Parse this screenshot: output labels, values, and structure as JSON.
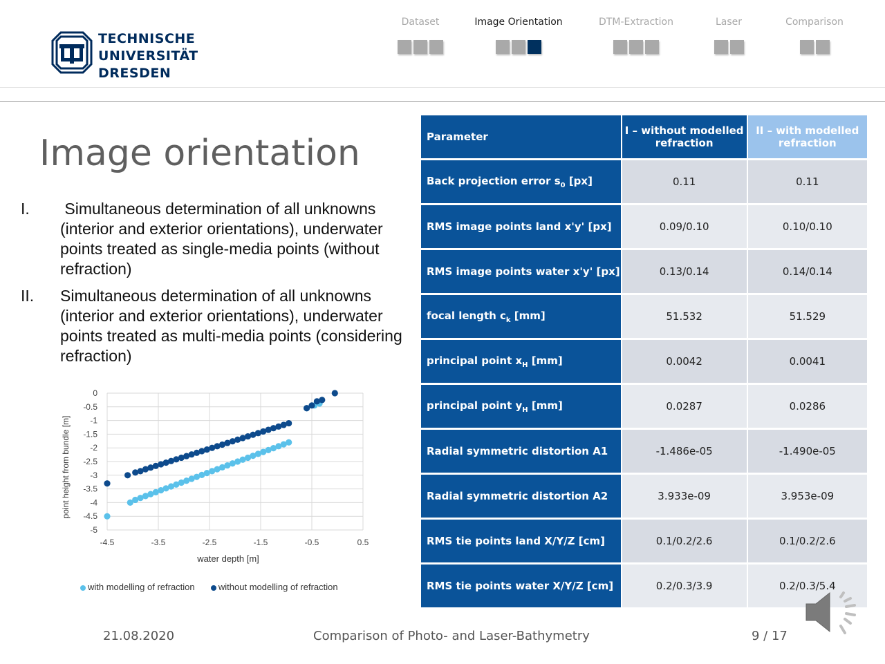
{
  "brand": {
    "line1": "TECHNISCHE",
    "line2": "UNIVERSITÄT",
    "line3": "DRESDEN",
    "color": "#002b5c"
  },
  "nav": [
    {
      "label": "Dataset",
      "boxes": 3,
      "current": -1,
      "active": false
    },
    {
      "label": "Image Orientation",
      "boxes": 3,
      "current": 2,
      "active": true
    },
    {
      "label": "DTM-Extraction",
      "boxes": 3,
      "current": -1,
      "active": false
    },
    {
      "label": "Laser",
      "boxes": 2,
      "current": -1,
      "active": false
    },
    {
      "label": "Comparison",
      "boxes": 2,
      "current": -1,
      "active": false
    }
  ],
  "slide": {
    "title": "Image orientation",
    "items": [
      {
        "num": "I.",
        "text": " Simultaneous determination of all unknowns (interior and exterior orientations), underwater points treated as single-media points (without refraction)"
      },
      {
        "num": "II.",
        "text": "Simultaneous determination of all unknowns (interior and exterior orientations), underwater points treated as multi-media points (considering refraction)"
      }
    ]
  },
  "chart_data": {
    "type": "scatter",
    "xlabel": "water depth [m]",
    "ylabel": "point height from bundle [m]",
    "xlim": [
      -4.5,
      0.5
    ],
    "ylim": [
      -5,
      0
    ],
    "xticks": [
      "-4.5",
      "-3.5",
      "-2.5",
      "-1.5",
      "-0.5",
      "0.5"
    ],
    "yticks": [
      "0",
      "-0.5",
      "-1",
      "-1.5",
      "-2",
      "-2.5",
      "-3",
      "-3.5",
      "-4",
      "-4.5",
      "-5"
    ],
    "grid": true,
    "legend_position": "bottom",
    "series": [
      {
        "name": "with modelling of refraction",
        "color": "#5bc1ea",
        "x": [
          -4.5,
          -4.05,
          -3.95,
          -3.85,
          -3.75,
          -3.65,
          -3.55,
          -3.45,
          -3.35,
          -3.25,
          -3.15,
          -3.05,
          -2.95,
          -2.85,
          -2.75,
          -2.65,
          -2.55,
          -2.45,
          -2.35,
          -2.25,
          -2.15,
          -2.05,
          -1.95,
          -1.85,
          -1.75,
          -1.65,
          -1.55,
          -1.45,
          -1.35,
          -1.25,
          -1.15,
          -1.05,
          -0.95,
          -0.6,
          -0.45,
          -0.35
        ],
        "y": [
          -4.5,
          -4.0,
          -3.9,
          -3.83,
          -3.76,
          -3.69,
          -3.62,
          -3.55,
          -3.48,
          -3.41,
          -3.34,
          -3.27,
          -3.2,
          -3.13,
          -3.06,
          -2.99,
          -2.92,
          -2.85,
          -2.78,
          -2.71,
          -2.64,
          -2.57,
          -2.5,
          -2.43,
          -2.36,
          -2.29,
          -2.22,
          -2.15,
          -2.08,
          -2.01,
          -1.94,
          -1.87,
          -1.8,
          -0.55,
          -0.45,
          -0.38
        ]
      },
      {
        "name": "without modelling of refraction",
        "color": "#0d4a8c",
        "x": [
          -4.5,
          -4.1,
          -3.95,
          -3.85,
          -3.75,
          -3.65,
          -3.55,
          -3.45,
          -3.35,
          -3.25,
          -3.15,
          -3.05,
          -2.95,
          -2.85,
          -2.75,
          -2.65,
          -2.55,
          -2.45,
          -2.35,
          -2.25,
          -2.15,
          -2.05,
          -1.95,
          -1.85,
          -1.75,
          -1.65,
          -1.55,
          -1.45,
          -1.35,
          -1.25,
          -1.15,
          -1.05,
          -0.95,
          -0.6,
          -0.5,
          -0.4,
          -0.3,
          -0.05
        ],
        "y": [
          -3.3,
          -3.0,
          -2.9,
          -2.85,
          -2.78,
          -2.72,
          -2.66,
          -2.6,
          -2.54,
          -2.48,
          -2.42,
          -2.36,
          -2.3,
          -2.24,
          -2.18,
          -2.12,
          -2.06,
          -2.0,
          -1.94,
          -1.88,
          -1.82,
          -1.76,
          -1.7,
          -1.64,
          -1.58,
          -1.52,
          -1.46,
          -1.4,
          -1.34,
          -1.28,
          -1.22,
          -1.16,
          -1.1,
          -0.55,
          -0.45,
          -0.3,
          -0.25,
          0.0
        ]
      }
    ]
  },
  "table": {
    "header": {
      "param": "Parameter",
      "col1": "I – without modelled refraction",
      "col2": "II – with modelled refraction"
    },
    "rows": [
      {
        "param": "Back projection error s",
        "sub": "0",
        "unit": " [px]",
        "v1": "0.11",
        "v2": "0.11"
      },
      {
        "param": "RMS image points land x'y' [px]",
        "sub": "",
        "unit": "",
        "v1": "0.09/0.10",
        "v2": "0.10/0.10"
      },
      {
        "param": "RMS image points water x'y' [px]",
        "sub": "",
        "unit": "",
        "v1": "0.13/0.14",
        "v2": "0.14/0.14"
      },
      {
        "param": "focal length c",
        "sub": "k",
        "unit": " [mm]",
        "v1": "51.532",
        "v2": "51.529"
      },
      {
        "param": "principal point x",
        "sub": "H",
        "unit": " [mm]",
        "v1": "0.0042",
        "v2": "0.0041"
      },
      {
        "param": "principal point y",
        "sub": "H",
        "unit": " [mm]",
        "v1": "0.0287",
        "v2": "0.0286"
      },
      {
        "param": "Radial symmetric distortion A1",
        "sub": "",
        "unit": "",
        "v1": "-1.486e-05",
        "v2": "-1.490e-05"
      },
      {
        "param": "Radial symmetric distortion A2",
        "sub": "",
        "unit": "",
        "v1": "3.933e-09",
        "v2": "3.953e-09"
      },
      {
        "param": "RMS tie points land X/Y/Z [cm]",
        "sub": "",
        "unit": "",
        "v1": "0.1/0.2/2.6",
        "v2": "0.1/0.2/2.6"
      },
      {
        "param": "RMS tie points water X/Y/Z [cm]",
        "sub": "",
        "unit": "",
        "v1": "0.2/0.3/3.9",
        "v2": "0.2/0.3/5.4"
      }
    ]
  },
  "footer": {
    "date": "21.08.2020",
    "title": "Comparison of Photo- and Laser-Bathymetry",
    "page": "9 / 17"
  },
  "icons": {
    "logo": "tu-dresden-logo-icon",
    "audio": "speaker-icon"
  }
}
